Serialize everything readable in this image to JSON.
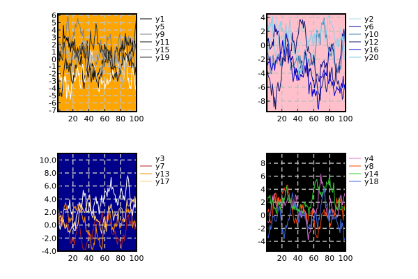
{
  "figure": {
    "layout": "2x2 grid of line plots with legends"
  },
  "chart_data": [
    {
      "type": "line",
      "panel": "top-left",
      "background_color": "#ffa500",
      "grid": true,
      "grid_color": "#c0c0c0",
      "xlim": [
        1,
        100
      ],
      "ylim": [
        -7.2,
        6.2
      ],
      "x_ticks": [
        20,
        40,
        60,
        80,
        100
      ],
      "x_tick_labels": [
        "20",
        "40",
        "60",
        "80",
        "100"
      ],
      "y_ticks": [
        -7,
        -6,
        -5,
        -4,
        -3,
        -2,
        -1,
        0,
        1,
        2,
        3,
        4,
        5,
        6
      ],
      "y_tick_labels": [
        "-7",
        "-6",
        "-5",
        "-4",
        "-3",
        "-2",
        "-1",
        "0",
        "1",
        "2",
        "3",
        "4",
        "5",
        "6"
      ],
      "legend_position": "outside-right",
      "series": [
        {
          "name": "y1",
          "color": "#000000",
          "seed": 11,
          "scale": 1.0,
          "offset": 0.5
        },
        {
          "name": "y5",
          "color": "#ffffff",
          "seed": 15,
          "scale": 1.0,
          "offset": -2.0
        },
        {
          "name": "y9",
          "color": "#808080",
          "seed": 19,
          "scale": 1.0,
          "offset": 1.5
        },
        {
          "name": "y11",
          "color": "#1a1a1a",
          "seed": 21,
          "scale": 1.0,
          "offset": -1.0
        },
        {
          "name": "y15",
          "color": "#b0b0b0",
          "seed": 25,
          "scale": 1.0,
          "offset": 0.0
        },
        {
          "name": "y19",
          "color": "#303030",
          "seed": 29,
          "scale": 1.0,
          "offset": 2.0
        }
      ]
    },
    {
      "type": "line",
      "panel": "top-right",
      "background_color": "#ffc0cb",
      "grid": true,
      "grid_color": "#c0c0c0",
      "xlim": [
        1,
        100
      ],
      "ylim": [
        -9.5,
        4.5
      ],
      "x_ticks": [
        20,
        40,
        60,
        80,
        100
      ],
      "x_tick_labels": [
        "20",
        "40",
        "60",
        "80",
        "100"
      ],
      "y_ticks": [
        -8,
        -6,
        -4,
        -2,
        0,
        2,
        4
      ],
      "y_tick_labels": [
        "-8",
        "-6",
        "-4",
        "-2",
        "0",
        "2",
        "4"
      ],
      "legend_position": "outside-right",
      "series": [
        {
          "name": "y2",
          "color": "#add8e6",
          "seed": 12,
          "scale": 1.1,
          "offset": 0.0
        },
        {
          "name": "y6",
          "color": "#00008b",
          "seed": 16,
          "scale": 1.1,
          "offset": -2.0
        },
        {
          "name": "y10",
          "color": "#4682b4",
          "seed": 20,
          "scale": 1.1,
          "offset": -1.0
        },
        {
          "name": "y12",
          "color": "#191970",
          "seed": 22,
          "scale": 1.1,
          "offset": -3.5
        },
        {
          "name": "y16",
          "color": "#0000cd",
          "seed": 26,
          "scale": 1.1,
          "offset": -5.0
        },
        {
          "name": "y20",
          "color": "#87ceeb",
          "seed": 30,
          "scale": 1.1,
          "offset": 1.5
        }
      ]
    },
    {
      "type": "line",
      "panel": "bottom-left",
      "background_color": "#00008b",
      "grid": true,
      "grid_color": "#c0c0c0",
      "xlim": [
        1,
        100
      ],
      "ylim": [
        -4.0,
        11.0
      ],
      "x_ticks": [
        20,
        40,
        60,
        80,
        100
      ],
      "x_tick_labels": [
        "20",
        "40",
        "60",
        "80",
        "100"
      ],
      "y_ticks": [
        -4,
        -2,
        0,
        2,
        4,
        6,
        8,
        10
      ],
      "y_tick_labels": [
        "-4.0",
        "-2.0",
        "0.0",
        "2.0",
        "4.0",
        "6.0",
        "8.0",
        "10.0"
      ],
      "legend_position": "outside-right",
      "series": [
        {
          "name": "y3",
          "color": "#ffffff",
          "seed": 13,
          "scale": 1.2,
          "offset": 3.0
        },
        {
          "name": "y7",
          "color": "#b22222",
          "seed": 17,
          "scale": 0.8,
          "offset": 0.0
        },
        {
          "name": "y13",
          "color": "#ff8c00",
          "seed": 23,
          "scale": 0.8,
          "offset": 0.5
        },
        {
          "name": "y17",
          "color": "#ffd27f",
          "seed": 27,
          "scale": 0.8,
          "offset": 1.0
        }
      ]
    },
    {
      "type": "line",
      "panel": "bottom-right",
      "background_color": "#000000",
      "grid": true,
      "grid_color": "#c0c0c0",
      "xlim": [
        1,
        100
      ],
      "ylim": [
        -5.5,
        9.5
      ],
      "x_ticks": [
        20,
        40,
        60,
        80,
        100
      ],
      "x_tick_labels": [
        "20",
        "40",
        "60",
        "80",
        "100"
      ],
      "y_ticks": [
        -4,
        -2,
        0,
        2,
        4,
        6,
        8
      ],
      "y_tick_labels": [
        "-4",
        "-2",
        "0",
        "2",
        "4",
        "6",
        "8"
      ],
      "legend_position": "outside-right",
      "series": [
        {
          "name": "y4",
          "color": "#da70d6",
          "seed": 14,
          "scale": 1.0,
          "offset": 1.0
        },
        {
          "name": "y8",
          "color": "#ff4500",
          "seed": 18,
          "scale": 1.0,
          "offset": 0.5
        },
        {
          "name": "y14",
          "color": "#32cd32",
          "seed": 24,
          "scale": 1.0,
          "offset": 2.0
        },
        {
          "name": "y18",
          "color": "#4169e1",
          "seed": 28,
          "scale": 1.0,
          "offset": -1.0
        }
      ]
    }
  ]
}
